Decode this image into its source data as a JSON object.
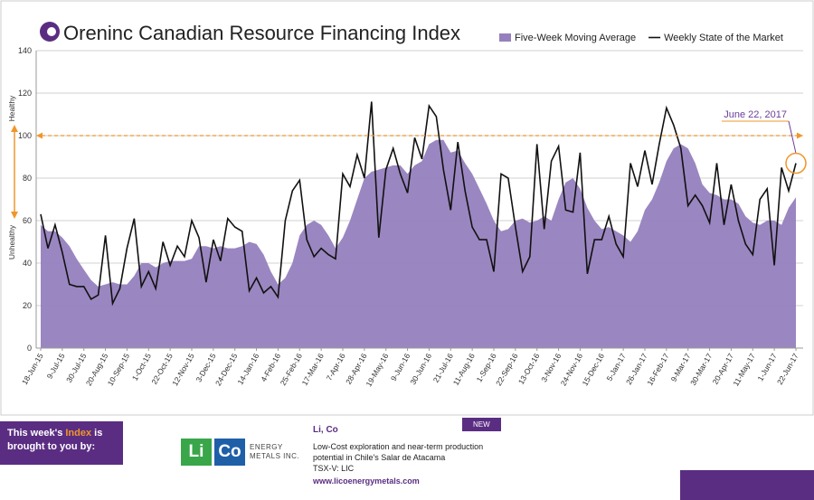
{
  "chart_data": {
    "type": "area_line",
    "title": "Oreninc Canadian Resource Financing Index",
    "axis_annotations": [
      "Healthy",
      "Unhealthy"
    ],
    "annotation": "June 22, 2017",
    "reference_line": 100,
    "categories": [
      "18-Jun-15",
      null,
      null,
      "9-Jul-15",
      null,
      null,
      "30-Jul-15",
      null,
      null,
      "20-Aug-15",
      null,
      null,
      "10-Sep-15",
      null,
      null,
      "1-Oct-15",
      null,
      null,
      "22-Oct-15",
      null,
      null,
      "12-Nov-15",
      null,
      null,
      "3-Dec-15",
      null,
      null,
      "24-Dec-15",
      null,
      null,
      "14-Jan-16",
      null,
      null,
      "4-Feb-16",
      null,
      null,
      "25-Feb-16",
      null,
      null,
      "17-Mar-16",
      null,
      null,
      "7-Apr-16",
      null,
      null,
      "28-Apr-16",
      null,
      null,
      "19-May-16",
      null,
      null,
      "9-Jun-16",
      null,
      null,
      "30-Jun-16",
      null,
      null,
      "21-Jul-16",
      null,
      null,
      "11-Aug-16",
      null,
      null,
      "1-Sep-16",
      null,
      null,
      "22-Sep-16",
      null,
      null,
      "13-Oct-16",
      null,
      null,
      "3-Nov-16",
      null,
      null,
      "24-Nov-16",
      null,
      null,
      "15-Dec-16",
      null,
      null,
      "5-Jan-17",
      null,
      null,
      "26-Jan-17",
      null,
      null,
      "16-Feb-17",
      null,
      null,
      "9-Mar-17",
      null,
      null,
      "30-Mar-17",
      null,
      null,
      "20-Apr-17",
      null,
      null,
      "11-May-17",
      null,
      null,
      "1-Jun-17",
      null,
      null,
      "22-Jun-17"
    ],
    "series": [
      {
        "name": "Five-Week Moving Average",
        "color": "#9580bd",
        "style": "area",
        "values": [
          58,
          55,
          55,
          52,
          48,
          42,
          37,
          32,
          29,
          30,
          31,
          30,
          30,
          34,
          40,
          40,
          38,
          40,
          41,
          41,
          41,
          42,
          48,
          48,
          47,
          48,
          47,
          47,
          48,
          50,
          49,
          44,
          36,
          30,
          33,
          40,
          53,
          58,
          60,
          58,
          53,
          47,
          52,
          60,
          70,
          80,
          83,
          84,
          85,
          86,
          86,
          82,
          86,
          88,
          96,
          98,
          98,
          92,
          93,
          87,
          82,
          75,
          68,
          60,
          55,
          56,
          60,
          61,
          59,
          60,
          62,
          60,
          70,
          78,
          80,
          75,
          66,
          60,
          56,
          57,
          55,
          53,
          50,
          55,
          65,
          70,
          78,
          88,
          94,
          96,
          94,
          87,
          77,
          73,
          72,
          70,
          70,
          68,
          62,
          59,
          58,
          60,
          60,
          58,
          66,
          71
        ]
      },
      {
        "name": "Weekly State of the Market",
        "color": "#111111",
        "style": "line",
        "values": [
          63,
          47,
          58,
          45,
          30,
          29,
          29,
          23,
          25,
          53,
          21,
          28,
          47,
          61,
          29,
          36,
          28,
          50,
          39,
          48,
          43,
          60,
          52,
          31,
          51,
          41,
          61,
          57,
          55,
          27,
          33,
          26,
          29,
          24,
          60,
          74,
          79,
          51,
          43,
          47,
          44,
          42,
          82,
          76,
          91,
          80,
          116,
          52,
          84,
          94,
          82,
          73,
          99,
          89,
          114,
          109,
          84,
          65,
          97,
          74,
          57,
          51,
          51,
          36,
          82,
          80,
          57,
          36,
          43,
          96,
          56,
          88,
          95,
          65,
          64,
          92,
          35,
          51,
          51,
          62,
          49,
          43,
          87,
          76,
          93,
          77,
          96,
          113,
          105,
          94,
          67,
          72,
          67,
          59,
          87,
          58,
          77,
          60,
          49,
          44,
          70,
          75,
          39,
          85,
          74,
          87
        ]
      }
    ],
    "ylim": [
      0,
      140
    ],
    "yticks": [
      0,
      20,
      40,
      60,
      80,
      100,
      120,
      140
    ],
    "grid": true
  },
  "sponsor": {
    "intro_before": "This week's",
    "intro_highlight": "Index",
    "intro_after": "is brought to you by:",
    "logo_left": "Li",
    "logo_right": "Co",
    "logo_name": "ENERGY METALS INC.",
    "name": "Li, Co",
    "badge": "NEW",
    "description": "Low-Cost exploration and near-term production potential in Chile's Salar de Atacama",
    "ticker": "TSX-V: LIC",
    "url": "www.licoenergymetals.com"
  }
}
